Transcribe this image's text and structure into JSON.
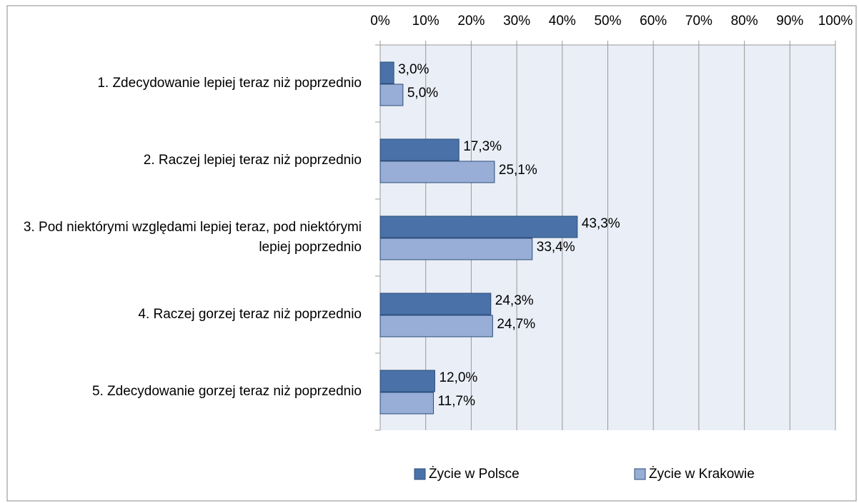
{
  "chart_data": {
    "type": "bar",
    "orientation": "horizontal",
    "categories": [
      "1. Zdecydowanie lepiej teraz niż poprzednio",
      "2. Raczej lepiej teraz niż poprzednio",
      "3. Pod niektórymi względami lepiej teraz, pod niektórymi lepiej poprzednio",
      "4. Raczej gorzej teraz niż poprzednio",
      "5. Zdecydowanie gorzej teraz niż poprzednio"
    ],
    "series": [
      {
        "name": "Życie w Polsce",
        "color": "#4a72a8",
        "values": [
          3.0,
          17.3,
          43.3,
          24.3,
          12.0
        ],
        "value_labels": [
          "3,0%",
          "17,3%",
          "43,3%",
          "24,3%",
          "12,0%"
        ]
      },
      {
        "name": "Życie w Krakowie",
        "color": "#98aed6",
        "values": [
          5.0,
          25.1,
          33.4,
          24.7,
          11.7
        ],
        "value_labels": [
          "5,0%",
          "25,1%",
          "33,4%",
          "24,7%",
          "11,7%"
        ]
      }
    ],
    "xlim": [
      0,
      100
    ],
    "xticks": [
      {
        "value": 0,
        "label": "0%"
      },
      {
        "value": 10,
        "label": "10%"
      },
      {
        "value": 20,
        "label": "20%"
      },
      {
        "value": 30,
        "label": "30%"
      },
      {
        "value": 40,
        "label": "40%"
      },
      {
        "value": 50,
        "label": "50%"
      },
      {
        "value": 60,
        "label": "60%"
      },
      {
        "value": 70,
        "label": "70%"
      },
      {
        "value": 80,
        "label": "80%"
      },
      {
        "value": 90,
        "label": "90%"
      },
      {
        "value": 100,
        "label": "100%"
      }
    ],
    "grid": true,
    "legend": "bottom"
  }
}
